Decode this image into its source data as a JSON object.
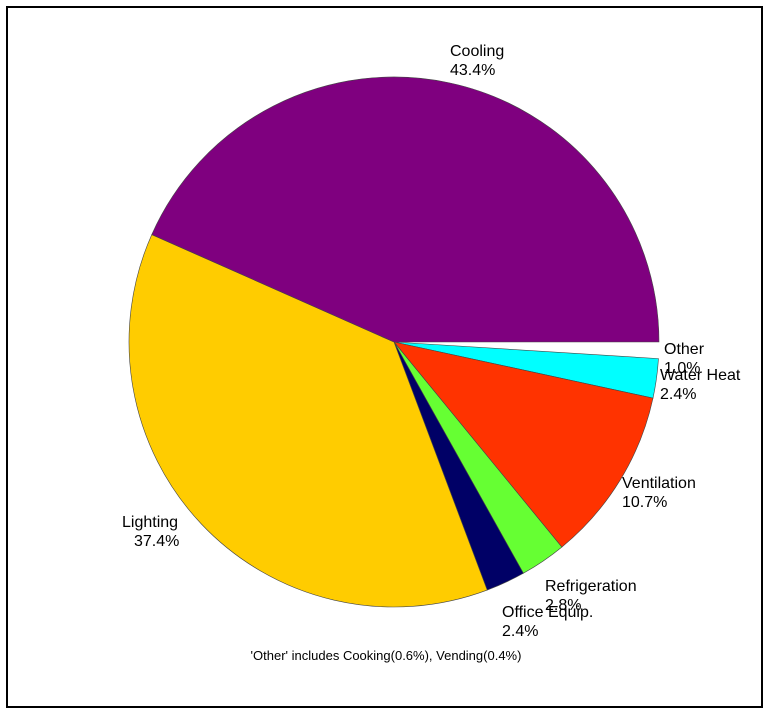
{
  "chart_data": {
    "type": "pie",
    "title": "",
    "slices": [
      {
        "label": "Other",
        "value": 1.0,
        "display": "1.0%",
        "color": "#ffffff"
      },
      {
        "label": "Water Heat",
        "value": 2.4,
        "display": "2.4%",
        "color": "#00ffff"
      },
      {
        "label": "Ventilation",
        "value": 10.7,
        "display": "10.7%",
        "color": "#ff3300"
      },
      {
        "label": "Refrigeration",
        "value": 2.8,
        "display": "2.8%",
        "color": "#66ff33"
      },
      {
        "label": "Office Equip.",
        "value": 2.4,
        "display": "2.4%",
        "color": "#000066"
      },
      {
        "label": "Lighting",
        "value": 37.4,
        "display": "37.4%",
        "color": "#ffcc00"
      },
      {
        "label": "Cooling",
        "value": 43.4,
        "display": "43.4%",
        "color": "#7f007f"
      }
    ],
    "footnote": "'Other' includes Cooking(0.6%), Vending(0.4%)",
    "legend": "none"
  }
}
